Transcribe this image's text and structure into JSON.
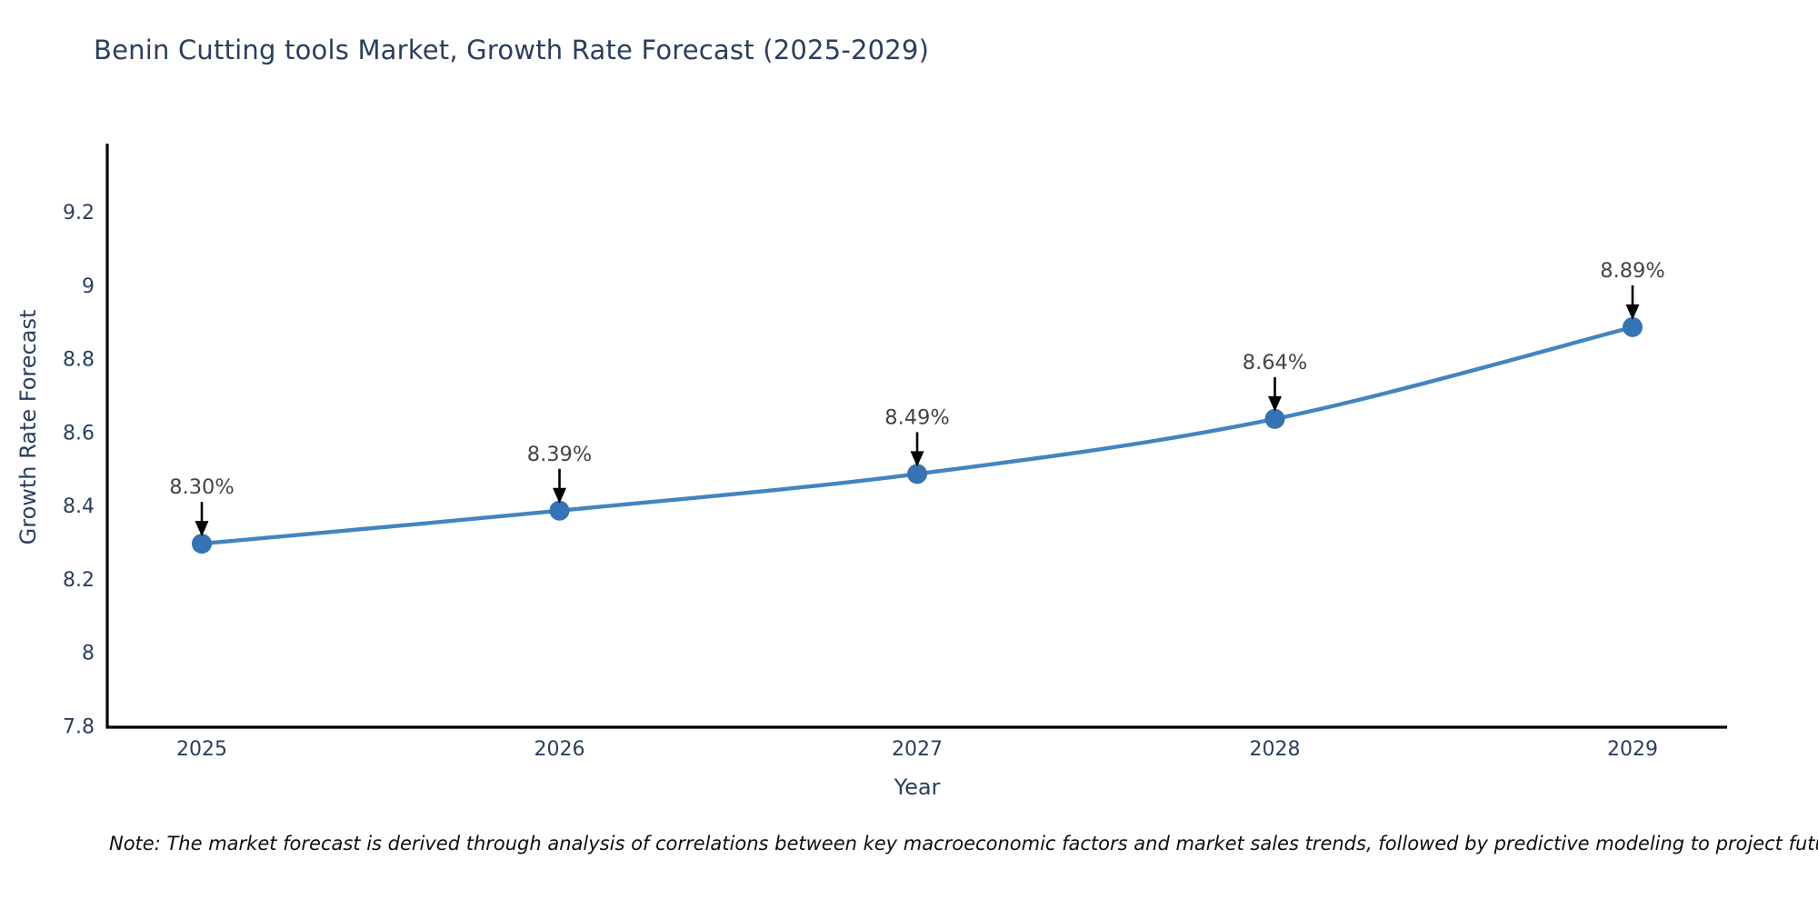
{
  "title": "Benin Cutting tools Market, Growth Rate Forecast (2025-2029)",
  "note": "Note: The market forecast is derived through analysis of correlations between key macroeconomic factors and market sales trends, followed by predictive modeling to project future sales",
  "chart_data": {
    "type": "line",
    "title": "Benin Cutting tools Market, Growth Rate Forecast (2025-2029)",
    "xlabel": "Year",
    "ylabel": "Growth Rate Forecast",
    "x": [
      2025,
      2026,
      2027,
      2028,
      2029
    ],
    "values": [
      8.3,
      8.39,
      8.49,
      8.64,
      8.89
    ],
    "point_labels": [
      "8.30%",
      "8.39%",
      "8.49%",
      "8.64%",
      "8.89%"
    ],
    "yticks": [
      7.8,
      8,
      8.2,
      8.4,
      8.6,
      8.8,
      9,
      9.2
    ],
    "ylim": [
      7.8,
      9.39
    ],
    "grid": false,
    "legend": false,
    "line_shape": "spline",
    "colors": {
      "line": "#4484c0",
      "marker": "#3474b4",
      "annotation_text": "#444444",
      "annotation_arrow": "#000000",
      "axis_line": "#000000",
      "title_text": "#2a3f5f",
      "tick_text": "#2a3f5f",
      "note_text": "#0e0e0e",
      "background": "#ffffff"
    }
  }
}
